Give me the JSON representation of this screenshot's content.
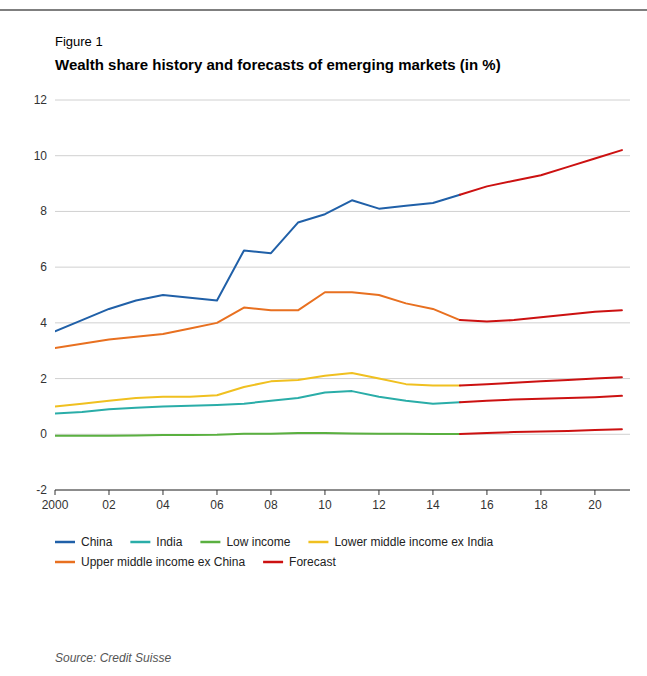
{
  "chart_data": {
    "type": "line",
    "title": "Wealth share history and forecasts of emerging markets (in %)",
    "annotations": [
      "Figure 1",
      "Source: Credit Suisse"
    ],
    "x": [
      2000,
      2001,
      2002,
      2003,
      2004,
      2005,
      2006,
      2007,
      2008,
      2009,
      2010,
      2011,
      2012,
      2013,
      2014,
      2015,
      2016,
      2017,
      2018,
      2019,
      2020,
      2021
    ],
    "series": [
      {
        "name": "China",
        "color": "#2060a8",
        "values": [
          3.7,
          4.1,
          4.5,
          4.8,
          5.0,
          4.9,
          4.8,
          6.6,
          6.5,
          7.6,
          7.9,
          8.4,
          8.1,
          8.2,
          8.3,
          8.6,
          null,
          null,
          null,
          null,
          null,
          null
        ]
      },
      {
        "name": "India",
        "color": "#2aada8",
        "values": [
          0.75,
          0.8,
          0.9,
          0.95,
          1.0,
          1.02,
          1.05,
          1.1,
          1.2,
          1.3,
          1.5,
          1.55,
          1.35,
          1.2,
          1.1,
          1.15,
          null,
          null,
          null,
          null,
          null,
          null
        ]
      },
      {
        "name": "Low income",
        "color": "#5ab040",
        "values": [
          -0.05,
          -0.05,
          -0.05,
          -0.04,
          -0.03,
          -0.03,
          -0.02,
          0.02,
          0.02,
          0.05,
          0.05,
          0.03,
          0.02,
          0.02,
          0.01,
          0.01,
          null,
          null,
          null,
          null,
          null,
          null
        ]
      },
      {
        "name": "Lower middle income ex India",
        "color": "#f0c020",
        "values": [
          1.0,
          1.1,
          1.2,
          1.3,
          1.35,
          1.35,
          1.4,
          1.7,
          1.9,
          1.95,
          2.1,
          2.2,
          2.0,
          1.8,
          1.75,
          1.75,
          null,
          null,
          null,
          null,
          null,
          null
        ]
      },
      {
        "name": "Upper middle income ex China",
        "color": "#e87020",
        "values": [
          3.1,
          3.25,
          3.4,
          3.5,
          3.6,
          3.8,
          4.0,
          4.55,
          4.45,
          4.45,
          5.1,
          5.1,
          5.0,
          4.7,
          4.5,
          4.1,
          null,
          null,
          null,
          null,
          null,
          null
        ]
      },
      {
        "name": "Forecast",
        "color": "#cc1111",
        "values": [
          null,
          null,
          null,
          null,
          null,
          null,
          null,
          null,
          null,
          null,
          null,
          null,
          null,
          null,
          null,
          8.6,
          8.9,
          9.1,
          9.3,
          9.6,
          9.9,
          10.2
        ]
      },
      {
        "name": "Forecast",
        "color": "#cc1111",
        "values": [
          null,
          null,
          null,
          null,
          null,
          null,
          null,
          null,
          null,
          null,
          null,
          null,
          null,
          null,
          null,
          4.1,
          4.05,
          4.1,
          4.2,
          4.3,
          4.4,
          4.45
        ]
      },
      {
        "name": "Forecast",
        "color": "#cc1111",
        "values": [
          null,
          null,
          null,
          null,
          null,
          null,
          null,
          null,
          null,
          null,
          null,
          null,
          null,
          null,
          null,
          1.75,
          1.8,
          1.85,
          1.9,
          1.95,
          2.0,
          2.05
        ]
      },
      {
        "name": "Forecast",
        "color": "#cc1111",
        "values": [
          null,
          null,
          null,
          null,
          null,
          null,
          null,
          null,
          null,
          null,
          null,
          null,
          null,
          null,
          null,
          1.15,
          1.2,
          1.25,
          1.28,
          1.3,
          1.33,
          1.38
        ]
      },
      {
        "name": "Forecast",
        "color": "#cc1111",
        "values": [
          null,
          null,
          null,
          null,
          null,
          null,
          null,
          null,
          null,
          null,
          null,
          null,
          null,
          null,
          null,
          0.01,
          0.05,
          0.08,
          0.1,
          0.12,
          0.15,
          0.18
        ]
      }
    ],
    "xlim": [
      2000,
      2021.3
    ],
    "xticks": [
      2000,
      {
        "value": 2002,
        "label": "02"
      },
      {
        "value": 2004,
        "label": "04"
      },
      {
        "value": 2006,
        "label": "06"
      },
      {
        "value": 2008,
        "label": "08"
      },
      {
        "value": 2010,
        "label": "10"
      },
      {
        "value": 2012,
        "label": "12"
      },
      {
        "value": 2014,
        "label": "14"
      },
      {
        "value": 2016,
        "label": "16"
      },
      {
        "value": 2018,
        "label": "18"
      },
      {
        "value": 2020,
        "label": "20"
      }
    ],
    "ylim": [
      -2,
      12
    ],
    "yticks": [
      -2,
      0,
      2,
      4,
      6,
      8,
      10,
      12
    ],
    "grid": true,
    "legend": "bottom"
  }
}
